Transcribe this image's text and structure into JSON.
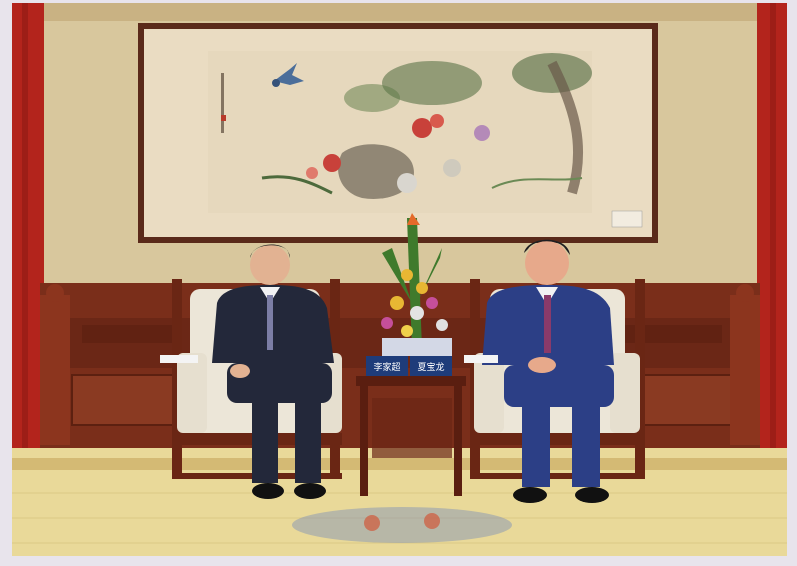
{
  "photo": {
    "name_cards": [
      {
        "text": "李家超"
      },
      {
        "text": "夏宝龙"
      }
    ],
    "colors": {
      "wall": "#d9c9a0",
      "curtain": "#b8241c",
      "wood": "#7a2e1a",
      "painting_mount": "#e7d9bf",
      "carpet": "#e8d89a",
      "suit_grey": "#23283a",
      "suit_blue": "#2c3f86"
    },
    "icons": [
      "bird-icon",
      "flower-arrangement-icon"
    ]
  }
}
